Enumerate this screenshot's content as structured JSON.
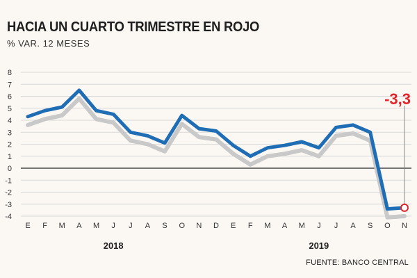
{
  "title": "HACIA UN CUARTO TRIMESTRE EN ROJO",
  "subtitle": "% VAR. 12 MESES",
  "source": "FUENTE: BANCO CENTRAL",
  "colors": {
    "main_series": "#1f6db5",
    "shadow_series": "#c9c9c9",
    "highlight": "#e0262c",
    "grid": "#d8d8d8",
    "zero_line": "#222222",
    "background": "#fbf7f2"
  },
  "chart_data": {
    "type": "line",
    "title": "HACIA UN CUARTO TRIMESTRE EN ROJO",
    "subtitle": "% VAR. 12 MESES",
    "categories": [
      "E",
      "F",
      "M",
      "A",
      "M",
      "J",
      "J",
      "A",
      "S",
      "O",
      "N",
      "D",
      "E",
      "F",
      "M",
      "A",
      "M",
      "J",
      "J",
      "A",
      "S",
      "O",
      "N"
    ],
    "year_labels": [
      {
        "label": "2018",
        "category_index": 5
      },
      {
        "label": "2019",
        "category_index": 17
      }
    ],
    "ylim": [
      -4,
      8
    ],
    "yticks": [
      -4,
      -3,
      -2,
      -1,
      0,
      1,
      2,
      3,
      4,
      5,
      6,
      7,
      8
    ],
    "grid": true,
    "series": [
      {
        "role": "main",
        "values": [
          4.3,
          4.8,
          5.1,
          6.5,
          4.8,
          4.5,
          3.0,
          2.7,
          2.1,
          4.4,
          3.3,
          3.1,
          1.9,
          1.0,
          1.7,
          1.9,
          2.2,
          1.7,
          3.4,
          3.6,
          3.0,
          -3.4,
          -3.3
        ]
      },
      {
        "role": "shadow",
        "values": [
          3.6,
          4.1,
          4.4,
          5.8,
          4.1,
          3.8,
          2.3,
          2.0,
          1.4,
          3.7,
          2.6,
          2.4,
          1.2,
          0.3,
          1.0,
          1.2,
          1.5,
          1.0,
          2.7,
          2.9,
          2.3,
          -4.1,
          -4.0
        ]
      }
    ],
    "annotation": {
      "text": "-3,3",
      "category_index": 22,
      "value": -3.3
    }
  }
}
